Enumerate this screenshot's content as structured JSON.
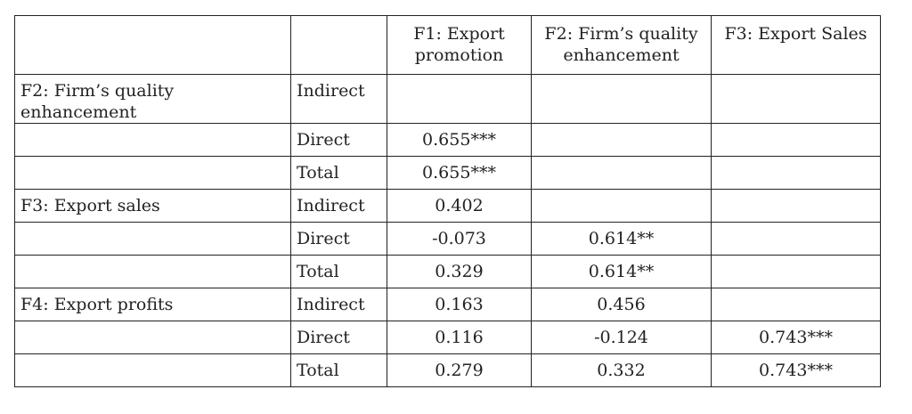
{
  "header": [
    "",
    "",
    "F1: Export promotion",
    "F2: Firm’s quality enhancement",
    "F3: Export Sales"
  ],
  "rows": [
    [
      "F2: Firm’s quality enhancement",
      "Indirect",
      "",
      "",
      ""
    ],
    [
      "",
      "Direct",
      "0.655***",
      "",
      ""
    ],
    [
      "",
      "Total",
      "0.655***",
      "",
      ""
    ],
    [
      "F3: Export sales",
      "Indirect",
      "0.402",
      "",
      ""
    ],
    [
      "",
      "Direct",
      "-0.073",
      "0.614**",
      ""
    ],
    [
      "",
      "Total",
      "0.329",
      "0.614**",
      ""
    ],
    [
      "F4: Export profits",
      "Indirect",
      "0.163",
      "0.456",
      ""
    ],
    [
      "",
      "Direct",
      "0.116",
      "-0.124",
      "0.743***"
    ],
    [
      "",
      "Total",
      "0.279",
      "0.332",
      "0.743***"
    ]
  ]
}
